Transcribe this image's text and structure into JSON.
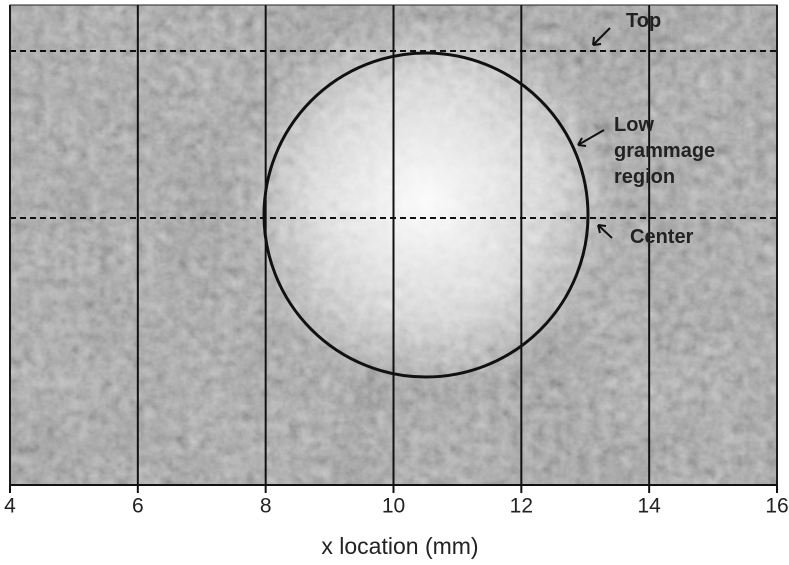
{
  "chart_data": {
    "type": "image",
    "xlabel": "x location (mm)",
    "xlim": [
      4,
      16
    ],
    "xticks": [
      4,
      6,
      8,
      10,
      12,
      14,
      16
    ],
    "grid": true,
    "annotations": [
      "Top",
      "Low grammage region",
      "Center"
    ]
  }
}
